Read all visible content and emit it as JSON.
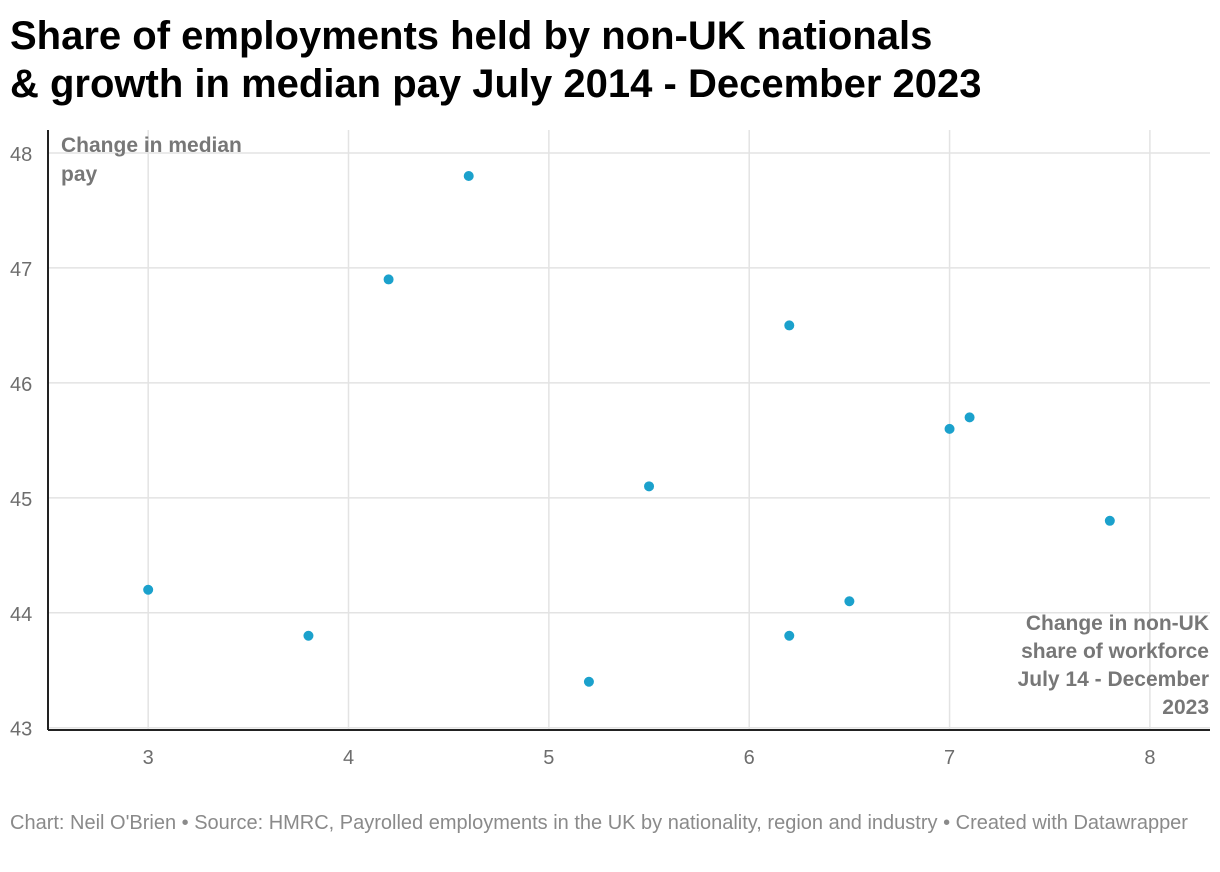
{
  "title": {
    "line1": "Share of employments held by non-UK nationals",
    "line2": "& growth in median pay July 2014 - December 2023"
  },
  "footer": {
    "text": "Chart: Neil O'Brien • Source: HMRC, Payrolled employments in the UK by nationality, region and industry • Created with Datawrapper"
  },
  "colors": {
    "point": "#1ba1cc",
    "grid": "#e3e3e3",
    "axis": "#222222"
  },
  "chart_data": {
    "type": "scatter",
    "title": "Share of employments held by non-UK nationals & growth in median pay July 2014 - December 2023",
    "ylabel_lines": [
      "Change in median",
      "pay"
    ],
    "xlabel_lines": [
      "Change in non-UK",
      "share of workforce",
      "July 14 - December",
      "2023"
    ],
    "xlim": [
      2.5,
      8.3
    ],
    "ylim": [
      42.98,
      48.2
    ],
    "xticks": [
      "3",
      "4",
      "5",
      "6",
      "7",
      "8"
    ],
    "yticks": [
      "43",
      "44",
      "45",
      "46",
      "47",
      "48"
    ],
    "grid": true,
    "points": [
      {
        "x": 3.0,
        "y": 44.2
      },
      {
        "x": 3.8,
        "y": 43.8
      },
      {
        "x": 4.2,
        "y": 46.9
      },
      {
        "x": 4.6,
        "y": 47.8
      },
      {
        "x": 5.2,
        "y": 43.4
      },
      {
        "x": 5.5,
        "y": 45.1
      },
      {
        "x": 6.2,
        "y": 46.5
      },
      {
        "x": 6.2,
        "y": 43.8
      },
      {
        "x": 6.5,
        "y": 44.1
      },
      {
        "x": 7.0,
        "y": 45.6
      },
      {
        "x": 7.1,
        "y": 45.7
      },
      {
        "x": 7.8,
        "y": 44.8
      }
    ]
  }
}
